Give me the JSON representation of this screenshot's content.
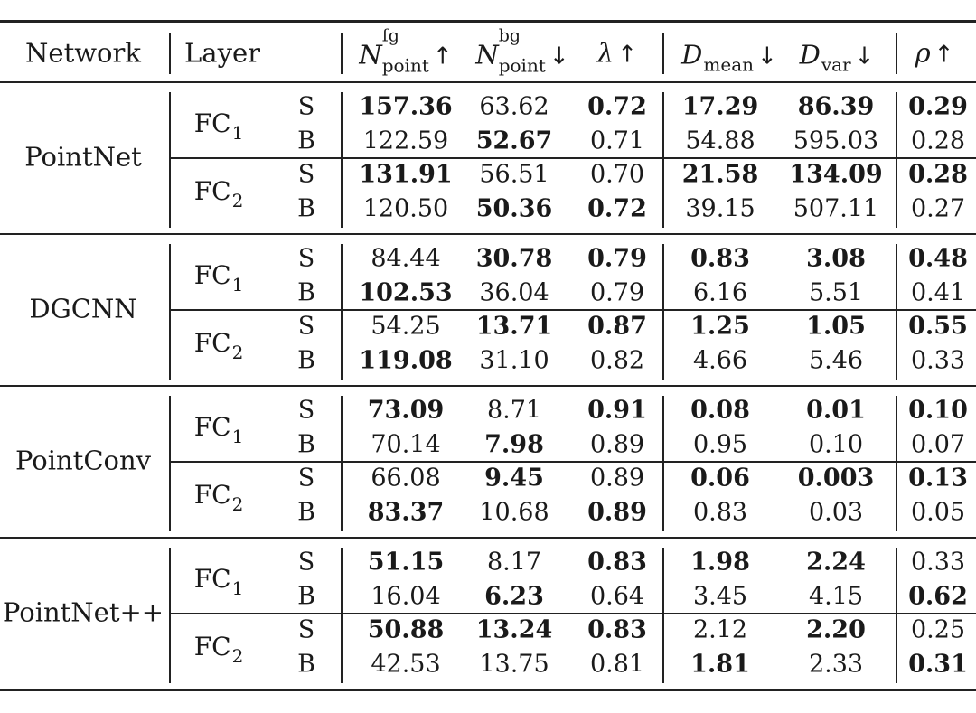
{
  "header": {
    "network": "Network",
    "layer": "Layer",
    "n_point_fg": {
      "base": "N",
      "sup": "fg",
      "sub": "point",
      "arrow": "↑"
    },
    "n_point_bg": {
      "base": "N",
      "sup": "bg",
      "sub": "point",
      "arrow": "↓"
    },
    "lambda": {
      "base": "λ",
      "arrow": "↑"
    },
    "d_mean": {
      "base": "D",
      "sub": "mean",
      "arrow": "↓"
    },
    "d_var": {
      "base": "D",
      "sub": "var",
      "arrow": "↓"
    },
    "rho": {
      "base": "ρ",
      "arrow": "↑"
    }
  },
  "layer_labels": {
    "fc1": {
      "base": "FC",
      "sub": "1"
    },
    "fc2": {
      "base": "FC",
      "sub": "2"
    }
  },
  "networks": [
    {
      "name": "PointNet",
      "layers": [
        {
          "layer": "fc1",
          "rows": [
            {
              "type": "S",
              "cells": [
                {
                  "v": "157.36",
                  "b": true
                },
                {
                  "v": "63.62",
                  "b": false
                },
                {
                  "v": "0.72",
                  "b": true
                },
                {
                  "v": "17.29",
                  "b": true
                },
                {
                  "v": "86.39",
                  "b": true
                },
                {
                  "v": "0.29",
                  "b": true
                }
              ]
            },
            {
              "type": "B",
              "cells": [
                {
                  "v": "122.59",
                  "b": false
                },
                {
                  "v": "52.67",
                  "b": true
                },
                {
                  "v": "0.71",
                  "b": false
                },
                {
                  "v": "54.88",
                  "b": false
                },
                {
                  "v": "595.03",
                  "b": false
                },
                {
                  "v": "0.28",
                  "b": false
                }
              ]
            }
          ]
        },
        {
          "layer": "fc2",
          "rows": [
            {
              "type": "S",
              "cells": [
                {
                  "v": "131.91",
                  "b": true
                },
                {
                  "v": "56.51",
                  "b": false
                },
                {
                  "v": "0.70",
                  "b": false
                },
                {
                  "v": "21.58",
                  "b": true
                },
                {
                  "v": "134.09",
                  "b": true
                },
                {
                  "v": "0.28",
                  "b": true
                }
              ]
            },
            {
              "type": "B",
              "cells": [
                {
                  "v": "120.50",
                  "b": false
                },
                {
                  "v": "50.36",
                  "b": true
                },
                {
                  "v": "0.72",
                  "b": true
                },
                {
                  "v": "39.15",
                  "b": false
                },
                {
                  "v": "507.11",
                  "b": false
                },
                {
                  "v": "0.27",
                  "b": false
                }
              ]
            }
          ]
        }
      ]
    },
    {
      "name": "DGCNN",
      "layers": [
        {
          "layer": "fc1",
          "rows": [
            {
              "type": "S",
              "cells": [
                {
                  "v": "84.44",
                  "b": false
                },
                {
                  "v": "30.78",
                  "b": true
                },
                {
                  "v": "0.79",
                  "b": true
                },
                {
                  "v": "0.83",
                  "b": true
                },
                {
                  "v": "3.08",
                  "b": true
                },
                {
                  "v": "0.48",
                  "b": true
                }
              ]
            },
            {
              "type": "B",
              "cells": [
                {
                  "v": "102.53",
                  "b": true
                },
                {
                  "v": "36.04",
                  "b": false
                },
                {
                  "v": "0.79",
                  "b": false
                },
                {
                  "v": "6.16",
                  "b": false
                },
                {
                  "v": "5.51",
                  "b": false
                },
                {
                  "v": "0.41",
                  "b": false
                }
              ]
            }
          ]
        },
        {
          "layer": "fc2",
          "rows": [
            {
              "type": "S",
              "cells": [
                {
                  "v": "54.25",
                  "b": false
                },
                {
                  "v": "13.71",
                  "b": true
                },
                {
                  "v": "0.87",
                  "b": true
                },
                {
                  "v": "1.25",
                  "b": true
                },
                {
                  "v": "1.05",
                  "b": true
                },
                {
                  "v": "0.55",
                  "b": true
                }
              ]
            },
            {
              "type": "B",
              "cells": [
                {
                  "v": "119.08",
                  "b": true
                },
                {
                  "v": "31.10",
                  "b": false
                },
                {
                  "v": "0.82",
                  "b": false
                },
                {
                  "v": "4.66",
                  "b": false
                },
                {
                  "v": "5.46",
                  "b": false
                },
                {
                  "v": "0.33",
                  "b": false
                }
              ]
            }
          ]
        }
      ]
    },
    {
      "name": "PointConv",
      "layers": [
        {
          "layer": "fc1",
          "rows": [
            {
              "type": "S",
              "cells": [
                {
                  "v": "73.09",
                  "b": true
                },
                {
                  "v": "8.71",
                  "b": false
                },
                {
                  "v": "0.91",
                  "b": true
                },
                {
                  "v": "0.08",
                  "b": true
                },
                {
                  "v": "0.01",
                  "b": true
                },
                {
                  "v": "0.10",
                  "b": true
                }
              ]
            },
            {
              "type": "B",
              "cells": [
                {
                  "v": "70.14",
                  "b": false
                },
                {
                  "v": "7.98",
                  "b": true
                },
                {
                  "v": "0.89",
                  "b": false
                },
                {
                  "v": "0.95",
                  "b": false
                },
                {
                  "v": "0.10",
                  "b": false
                },
                {
                  "v": "0.07",
                  "b": false
                }
              ]
            }
          ]
        },
        {
          "layer": "fc2",
          "rows": [
            {
              "type": "S",
              "cells": [
                {
                  "v": "66.08",
                  "b": false
                },
                {
                  "v": "9.45",
                  "b": true
                },
                {
                  "v": "0.89",
                  "b": false
                },
                {
                  "v": "0.06",
                  "b": true
                },
                {
                  "v": "0.003",
                  "b": true
                },
                {
                  "v": "0.13",
                  "b": true
                }
              ]
            },
            {
              "type": "B",
              "cells": [
                {
                  "v": "83.37",
                  "b": true
                },
                {
                  "v": "10.68",
                  "b": false
                },
                {
                  "v": "0.89",
                  "b": true
                },
                {
                  "v": "0.83",
                  "b": false
                },
                {
                  "v": "0.03",
                  "b": false
                },
                {
                  "v": "0.05",
                  "b": false
                }
              ]
            }
          ]
        }
      ]
    },
    {
      "name": "PointNet++",
      "layers": [
        {
          "layer": "fc1",
          "rows": [
            {
              "type": "S",
              "cells": [
                {
                  "v": "51.15",
                  "b": true
                },
                {
                  "v": "8.17",
                  "b": false
                },
                {
                  "v": "0.83",
                  "b": true
                },
                {
                  "v": "1.98",
                  "b": true
                },
                {
                  "v": "2.24",
                  "b": true
                },
                {
                  "v": "0.33",
                  "b": false
                }
              ]
            },
            {
              "type": "B",
              "cells": [
                {
                  "v": "16.04",
                  "b": false
                },
                {
                  "v": "6.23",
                  "b": true
                },
                {
                  "v": "0.64",
                  "b": false
                },
                {
                  "v": "3.45",
                  "b": false
                },
                {
                  "v": "4.15",
                  "b": false
                },
                {
                  "v": "0.62",
                  "b": true
                }
              ]
            }
          ]
        },
        {
          "layer": "fc2",
          "rows": [
            {
              "type": "S",
              "cells": [
                {
                  "v": "50.88",
                  "b": true
                },
                {
                  "v": "13.24",
                  "b": true
                },
                {
                  "v": "0.83",
                  "b": true
                },
                {
                  "v": "2.12",
                  "b": false
                },
                {
                  "v": "2.20",
                  "b": true
                },
                {
                  "v": "0.25",
                  "b": false
                }
              ]
            },
            {
              "type": "B",
              "cells": [
                {
                  "v": "42.53",
                  "b": false
                },
                {
                  "v": "13.75",
                  "b": false
                },
                {
                  "v": "0.81",
                  "b": false
                },
                {
                  "v": "1.81",
                  "b": true
                },
                {
                  "v": "2.33",
                  "b": false
                },
                {
                  "v": "0.31",
                  "b": true
                }
              ]
            }
          ]
        }
      ]
    }
  ]
}
